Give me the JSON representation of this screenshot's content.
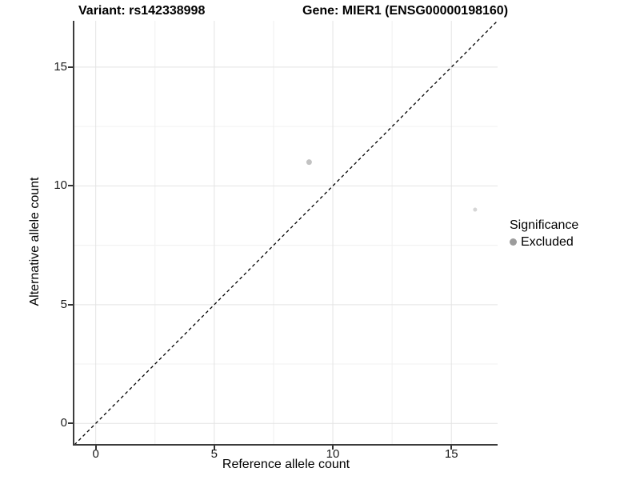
{
  "titles": {
    "left": "Variant: rs142338998",
    "right": "Gene: MIER1 (ENSG00000198160)"
  },
  "chart_data": {
    "type": "scatter",
    "title": "Variant: rs142338998   Gene: MIER1 (ENSG00000198160)",
    "xlabel": "Reference allele count",
    "ylabel": "Alternative allele count",
    "xlim": [
      -0.9,
      16.95
    ],
    "ylim": [
      -0.9,
      16.95
    ],
    "xticks": [
      0,
      5,
      10,
      15
    ],
    "yticks": [
      0,
      5,
      10,
      15
    ],
    "minor_gridlines": [
      2.5,
      7.5,
      12.5
    ],
    "grid": "major and minor, light gray, on white background",
    "points": [
      {
        "x": 9,
        "y": 11,
        "significance": "Excluded",
        "color": "#c2c2c2",
        "radius": 3.5
      },
      {
        "x": 16,
        "y": 9,
        "significance": "Excluded",
        "color": "#d6d6d6",
        "radius": 2.5
      }
    ],
    "identity_line": {
      "equation": "y = x",
      "style": "dashed",
      "color": "#000000"
    },
    "legend": {
      "title": "Significance",
      "position": "right",
      "items": [
        {
          "label": "Excluded",
          "color": "#9c9c9c"
        }
      ]
    },
    "style": {
      "major_grid_color": "#e3e3e3",
      "minor_grid_color": "#f0f0f0",
      "axis_line_color": "#3c3c3c",
      "tick_color": "#333333"
    }
  }
}
